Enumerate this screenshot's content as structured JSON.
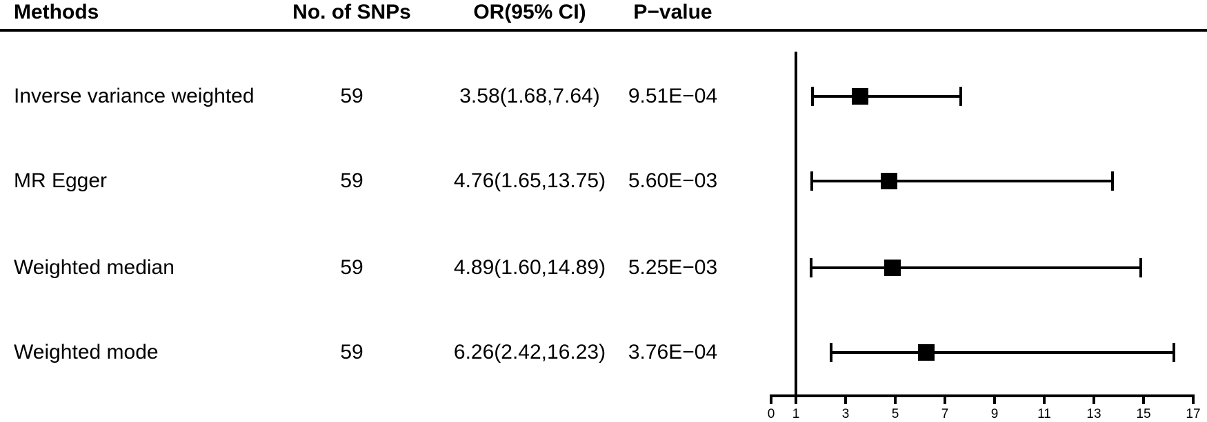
{
  "table": {
    "headers": [
      "Methods",
      "No. of SNPs",
      "OR(95% CI)",
      "P−value"
    ],
    "rows": [
      {
        "method": "Inverse variance weighted",
        "snps": "59",
        "or_ci": "3.58(1.68,7.64)",
        "pvalue": "9.51E−04"
      },
      {
        "method": "MR Egger",
        "snps": "59",
        "or_ci": "4.76(1.65,13.75)",
        "pvalue": "5.60E−03"
      },
      {
        "method": "Weighted median",
        "snps": "59",
        "or_ci": "4.89(1.60,14.89)",
        "pvalue": "5.25E−03"
      },
      {
        "method": "Weighted mode",
        "snps": "59",
        "or_ci": "6.26(2.42,16.23)",
        "pvalue": "3.76E−04"
      }
    ]
  },
  "chart_data": {
    "type": "forest",
    "title": "",
    "xlabel": "",
    "ylabel": "",
    "xlim": [
      0,
      17
    ],
    "x_ticks": [
      0,
      1,
      3,
      5,
      7,
      9,
      11,
      13,
      15,
      17
    ],
    "reference_line_x": 1,
    "grid": false,
    "marker": "filled-square",
    "series": [
      {
        "name": "Inverse variance weighted",
        "n_snps": 59,
        "or": 3.58,
        "ci_low": 1.68,
        "ci_high": 7.64,
        "p_value": "9.51E−04"
      },
      {
        "name": "MR Egger",
        "n_snps": 59,
        "or": 4.76,
        "ci_low": 1.65,
        "ci_high": 13.75,
        "p_value": "5.60E−03"
      },
      {
        "name": "Weighted median",
        "n_snps": 59,
        "or": 4.89,
        "ci_low": 1.6,
        "ci_high": 14.89,
        "p_value": "5.25E−03"
      },
      {
        "name": "Weighted mode",
        "n_snps": 59,
        "or": 6.26,
        "ci_low": 2.42,
        "ci_high": 16.23,
        "p_value": "3.76E−04"
      }
    ],
    "colors": {
      "line": "#000000",
      "marker": "#000000",
      "text": "#000000",
      "background": "#ffffff"
    }
  }
}
